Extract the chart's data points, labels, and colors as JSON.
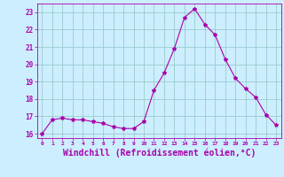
{
  "x": [
    0,
    1,
    2,
    3,
    4,
    5,
    6,
    7,
    8,
    9,
    10,
    11,
    12,
    13,
    14,
    15,
    16,
    17,
    18,
    19,
    20,
    21,
    22,
    23
  ],
  "y": [
    16.0,
    16.8,
    16.9,
    16.8,
    16.8,
    16.7,
    16.6,
    16.4,
    16.3,
    16.3,
    16.7,
    18.5,
    19.5,
    20.9,
    22.7,
    23.2,
    22.3,
    21.7,
    20.3,
    19.2,
    18.6,
    18.1,
    17.1,
    16.5
  ],
  "line_color": "#aa00aa",
  "marker": "*",
  "marker_size": 3,
  "bg_color": "#cceeff",
  "grid_color": "#99cccc",
  "xlabel": "Windchill (Refroidissement éolien,°C)",
  "xlabel_fontsize": 7,
  "tick_label_color": "#aa00aa",
  "xlim": [
    -0.5,
    23.5
  ],
  "ylim": [
    15.75,
    23.5
  ],
  "yticks": [
    16,
    17,
    18,
    19,
    20,
    21,
    22,
    23
  ],
  "xticks": [
    0,
    1,
    2,
    3,
    4,
    5,
    6,
    7,
    8,
    9,
    10,
    11,
    12,
    13,
    14,
    15,
    16,
    17,
    18,
    19,
    20,
    21,
    22,
    23
  ]
}
